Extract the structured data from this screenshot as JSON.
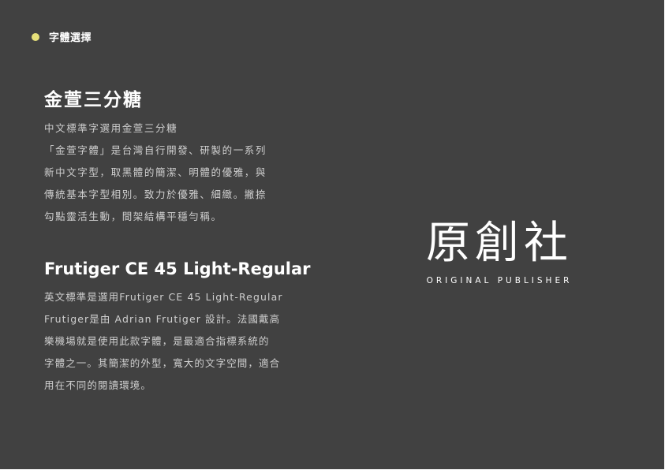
{
  "colors": {
    "page_background": "#414141",
    "accent_dot": "#e6e07a",
    "body_text": "#cfcfcf",
    "heading_text": "#ffffff"
  },
  "section": {
    "label": "字體選擇"
  },
  "chinese_font": {
    "title": "金萱三分糖",
    "lines": [
      "中文標準字選用金萱三分糖",
      "「金萱字體」是台灣自行開發、研製的一系列",
      "新中文字型，取黑體的簡潔、明體的優雅，與",
      "傳統基本字型相別。致力於優雅、細緻。撇捺",
      "勾點靈活生動，間架結構平穩勻稱。"
    ]
  },
  "latin_font": {
    "title": "Frutiger CE 45 Light-Regular",
    "lines": [
      "英文標準是選用Frutiger CE 45 Light-Regular",
      "Frutiger是由 Adrian Frutiger 設計。法國戴高",
      "樂機場就是使用此款字體，是最適合指標系統的",
      "字體之一。其簡潔的外型，寬大的文字空間，適合",
      "用在不同的閱讀環境。"
    ]
  },
  "brand": {
    "name": "原創社",
    "subtitle": "ORIGINAL PUBLISHER"
  }
}
